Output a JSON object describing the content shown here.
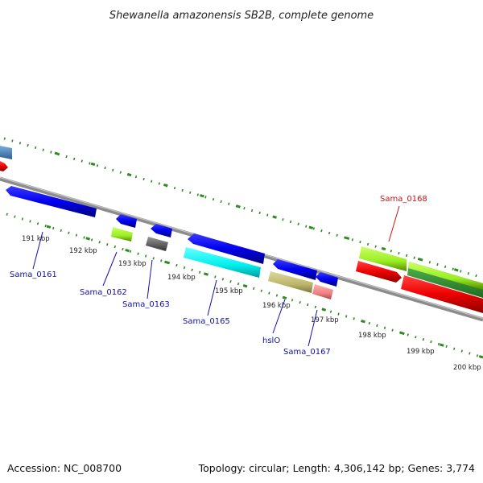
{
  "title": "Shewanella amazonensis SB2B, complete genome",
  "footer": {
    "accession": "Accession: NC_008700",
    "summary": "Topology: circular; Length: 4,306,142 bp; Genes: 3,774"
  },
  "axis": {
    "unit": "kbp",
    "ticks": [
      {
        "kbp": 191,
        "label": "191 kbp"
      },
      {
        "kbp": 192,
        "label": "192 kbp"
      },
      {
        "kbp": 193,
        "label": "193 kbp"
      },
      {
        "kbp": 194,
        "label": "194 kbp"
      },
      {
        "kbp": 195,
        "label": "195 kbp"
      },
      {
        "kbp": 196,
        "label": "196 kbp"
      },
      {
        "kbp": 197,
        "label": "197 kbp"
      },
      {
        "kbp": 198,
        "label": "198 kbp"
      },
      {
        "kbp": 199,
        "label": "199 kbp"
      },
      {
        "kbp": 200,
        "label": "200 kbp"
      }
    ]
  },
  "colors": {
    "backbone": "#8c8c8c",
    "ticks": "#2e8b22",
    "label_blue": "#1010aa",
    "label_red": "#cc1111"
  },
  "gene_labels": [
    {
      "name": "Sama_0161",
      "color": "#1010aa"
    },
    {
      "name": "Sama_0162",
      "color": "#1010aa"
    },
    {
      "name": "Sama_0163",
      "color": "#1010aa"
    },
    {
      "name": "Sama_0165",
      "color": "#1010aa"
    },
    {
      "name": "hslO",
      "color": "#1010aa"
    },
    {
      "name": "Sama_0167",
      "color": "#1010aa"
    },
    {
      "name": "Sama_0168",
      "color": "#cc1111"
    }
  ]
}
